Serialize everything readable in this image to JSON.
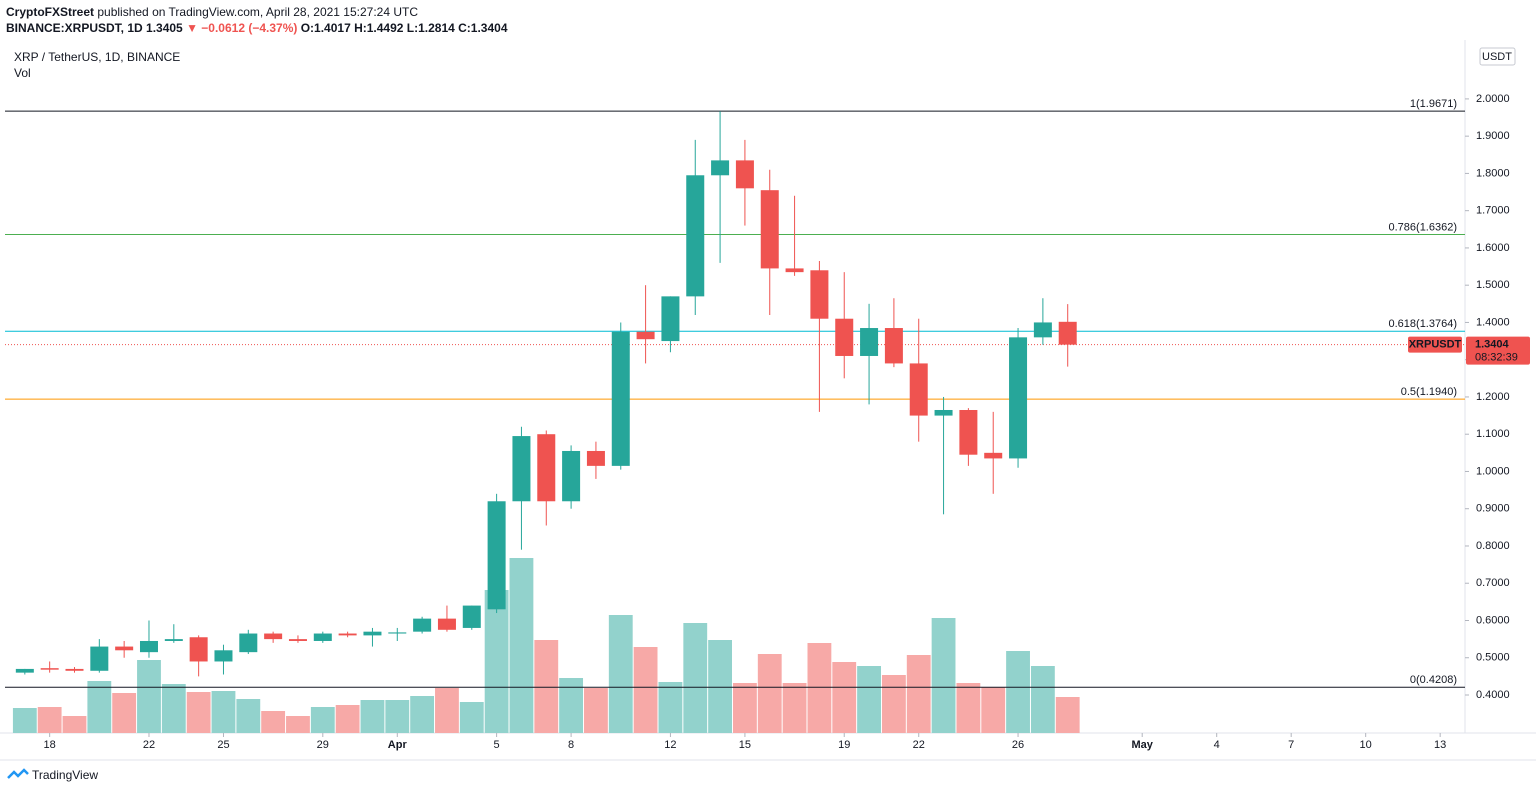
{
  "header": {
    "author": "CryptoFXStreet",
    "published": "published on TradingView.com, April 28, 2021 15:27:24 UTC",
    "symbol": "BINANCE:XRPUSDT, 1D",
    "last": "1.3405",
    "change": "▼ −0.0612 (−4.37%)",
    "ohlc": "O:1.4017 H:1.4492 L:1.2814 C:1.3404"
  },
  "legend": {
    "title": "XRP / TetherUS, 1D, BINANCE",
    "volume": "Vol"
  },
  "footer": {
    "brand": "TradingView"
  },
  "chart_data": {
    "type": "candlestick",
    "currency": "USDT",
    "dates": [
      "2021-03-17",
      "2021-03-18",
      "2021-03-19",
      "2021-03-20",
      "2021-03-21",
      "2021-03-22",
      "2021-03-23",
      "2021-03-24",
      "2021-03-25",
      "2021-03-26",
      "2021-03-27",
      "2021-03-28",
      "2021-03-29",
      "2021-03-30",
      "2021-03-31",
      "2021-04-01",
      "2021-04-02",
      "2021-04-03",
      "2021-04-04",
      "2021-04-05",
      "2021-04-06",
      "2021-04-07",
      "2021-04-08",
      "2021-04-09",
      "2021-04-10",
      "2021-04-11",
      "2021-04-12",
      "2021-04-13",
      "2021-04-14",
      "2021-04-15",
      "2021-04-16",
      "2021-04-17",
      "2021-04-18",
      "2021-04-19",
      "2021-04-20",
      "2021-04-21",
      "2021-04-22",
      "2021-04-23",
      "2021-04-24",
      "2021-04-25",
      "2021-04-26",
      "2021-04-27",
      "2021-04-28"
    ],
    "open": [
      0.46,
      0.472,
      0.47,
      0.465,
      0.53,
      0.515,
      0.545,
      0.555,
      0.49,
      0.515,
      0.565,
      0.55,
      0.545,
      0.565,
      0.56,
      0.565,
      0.57,
      0.605,
      0.58,
      0.63,
      0.92,
      1.1,
      0.92,
      1.055,
      1.015,
      1.375,
      1.35,
      1.47,
      1.795,
      1.835,
      1.755,
      1.545,
      1.54,
      1.41,
      1.31,
      1.385,
      1.29,
      1.15,
      1.165,
      1.05,
      1.035,
      1.36,
      1.4017
    ],
    "high": [
      0.47,
      0.49,
      0.475,
      0.55,
      0.545,
      0.6,
      0.59,
      0.56,
      0.535,
      0.575,
      0.57,
      0.56,
      0.57,
      0.57,
      0.58,
      0.58,
      0.61,
      0.64,
      0.64,
      0.94,
      1.12,
      1.11,
      1.07,
      1.08,
      1.4,
      1.5,
      1.47,
      1.89,
      1.967,
      1.89,
      1.81,
      1.74,
      1.565,
      1.535,
      1.45,
      1.465,
      1.41,
      1.2,
      1.17,
      1.16,
      1.385,
      1.465,
      1.4492
    ],
    "low": [
      0.455,
      0.46,
      0.46,
      0.46,
      0.5,
      0.5,
      0.54,
      0.45,
      0.455,
      0.51,
      0.54,
      0.54,
      0.54,
      0.555,
      0.53,
      0.545,
      0.565,
      0.57,
      0.575,
      0.62,
      0.79,
      0.855,
      0.9,
      0.98,
      1.005,
      1.29,
      1.32,
      1.42,
      1.56,
      1.66,
      1.42,
      1.525,
      1.16,
      1.25,
      1.18,
      1.28,
      1.08,
      0.885,
      1.015,
      0.94,
      1.01,
      1.34,
      1.2814
    ],
    "close": [
      0.47,
      0.468,
      0.465,
      0.53,
      0.52,
      0.545,
      0.55,
      0.49,
      0.52,
      0.565,
      0.55,
      0.545,
      0.565,
      0.56,
      0.57,
      0.568,
      0.605,
      0.575,
      0.64,
      0.92,
      1.095,
      0.92,
      1.055,
      1.015,
      1.375,
      1.355,
      1.47,
      1.795,
      1.835,
      1.76,
      1.545,
      1.535,
      1.41,
      1.31,
      1.385,
      1.29,
      1.15,
      1.165,
      1.045,
      1.035,
      1.36,
      1.4,
      1.3404
    ],
    "volume": [
      25,
      26,
      17,
      52,
      40,
      73,
      49,
      41,
      42,
      34,
      22,
      17,
      26,
      28,
      33,
      33,
      37,
      45,
      31,
      143,
      175,
      93,
      55,
      45,
      118,
      86,
      51,
      110,
      93,
      50,
      79,
      50,
      90,
      71,
      67,
      58,
      78,
      115,
      50,
      46,
      82,
      67,
      36
    ],
    "colors": {
      "up": "#26a69a",
      "down": "#ef5350",
      "volume_up": "#92d2cc",
      "volume_down": "#f7a9a7"
    },
    "ylim": [
      0.298,
      2.244
    ],
    "yticks": [
      {
        "value": 0.4,
        "label": "0.4000"
      },
      {
        "value": 0.5,
        "label": "0.5000"
      },
      {
        "value": 0.6,
        "label": "0.6000"
      },
      {
        "value": 0.7,
        "label": "0.7000"
      },
      {
        "value": 0.8,
        "label": "0.8000"
      },
      {
        "value": 0.9,
        "label": "0.9000"
      },
      {
        "value": 1.0,
        "label": "1.0000"
      },
      {
        "value": 1.1,
        "label": "1.1000"
      },
      {
        "value": 1.2,
        "label": "1.2000"
      },
      {
        "value": 1.3,
        "label": "1.3000"
      },
      {
        "value": 1.4,
        "label": "1.4000"
      },
      {
        "value": 1.5,
        "label": "1.5000"
      },
      {
        "value": 1.6,
        "label": "1.6000"
      },
      {
        "value": 1.7,
        "label": "1.7000"
      },
      {
        "value": 1.8,
        "label": "1.8000"
      },
      {
        "value": 1.9,
        "label": "1.9000"
      },
      {
        "value": 2.0,
        "label": "2.0000"
      }
    ],
    "xlim": [
      "2021-03-16",
      "2021-05-14"
    ],
    "xticks": [
      {
        "value": "2021-03-18",
        "label": "18"
      },
      {
        "value": "2021-03-22",
        "label": "22"
      },
      {
        "value": "2021-03-25",
        "label": "25"
      },
      {
        "value": "2021-03-29",
        "label": "29"
      },
      {
        "value": "2021-04-01",
        "label": "Apr"
      },
      {
        "value": "2021-04-05",
        "label": "5"
      },
      {
        "value": "2021-04-08",
        "label": "8"
      },
      {
        "value": "2021-04-12",
        "label": "12"
      },
      {
        "value": "2021-04-15",
        "label": "15"
      },
      {
        "value": "2021-04-19",
        "label": "19"
      },
      {
        "value": "2021-04-22",
        "label": "22"
      },
      {
        "value": "2021-04-26",
        "label": "26"
      },
      {
        "value": "2021-05-01",
        "label": "May"
      },
      {
        "value": "2021-05-04",
        "label": "4"
      },
      {
        "value": "2021-05-07",
        "label": "7"
      },
      {
        "value": "2021-05-10",
        "label": "10"
      },
      {
        "value": "2021-05-13",
        "label": "13"
      }
    ],
    "levels": [
      {
        "label": "1(1.9671)",
        "value": 1.9671,
        "color": "#131722"
      },
      {
        "label": "0.786(1.6362)",
        "value": 1.6362,
        "color": "#4caf50"
      },
      {
        "label": "0.618(1.3764)",
        "value": 1.3764,
        "color": "#00bcd4"
      },
      {
        "label": "0.5(1.1940)",
        "value": 1.194,
        "color": "#ff9800"
      },
      {
        "label": "0(0.4208)",
        "value": 0.4208,
        "color": "#131722"
      }
    ],
    "price_line": {
      "name": "XRPUSDT",
      "value": 1.3404,
      "countdown": "08:32:39",
      "color": "#ef5350"
    }
  }
}
